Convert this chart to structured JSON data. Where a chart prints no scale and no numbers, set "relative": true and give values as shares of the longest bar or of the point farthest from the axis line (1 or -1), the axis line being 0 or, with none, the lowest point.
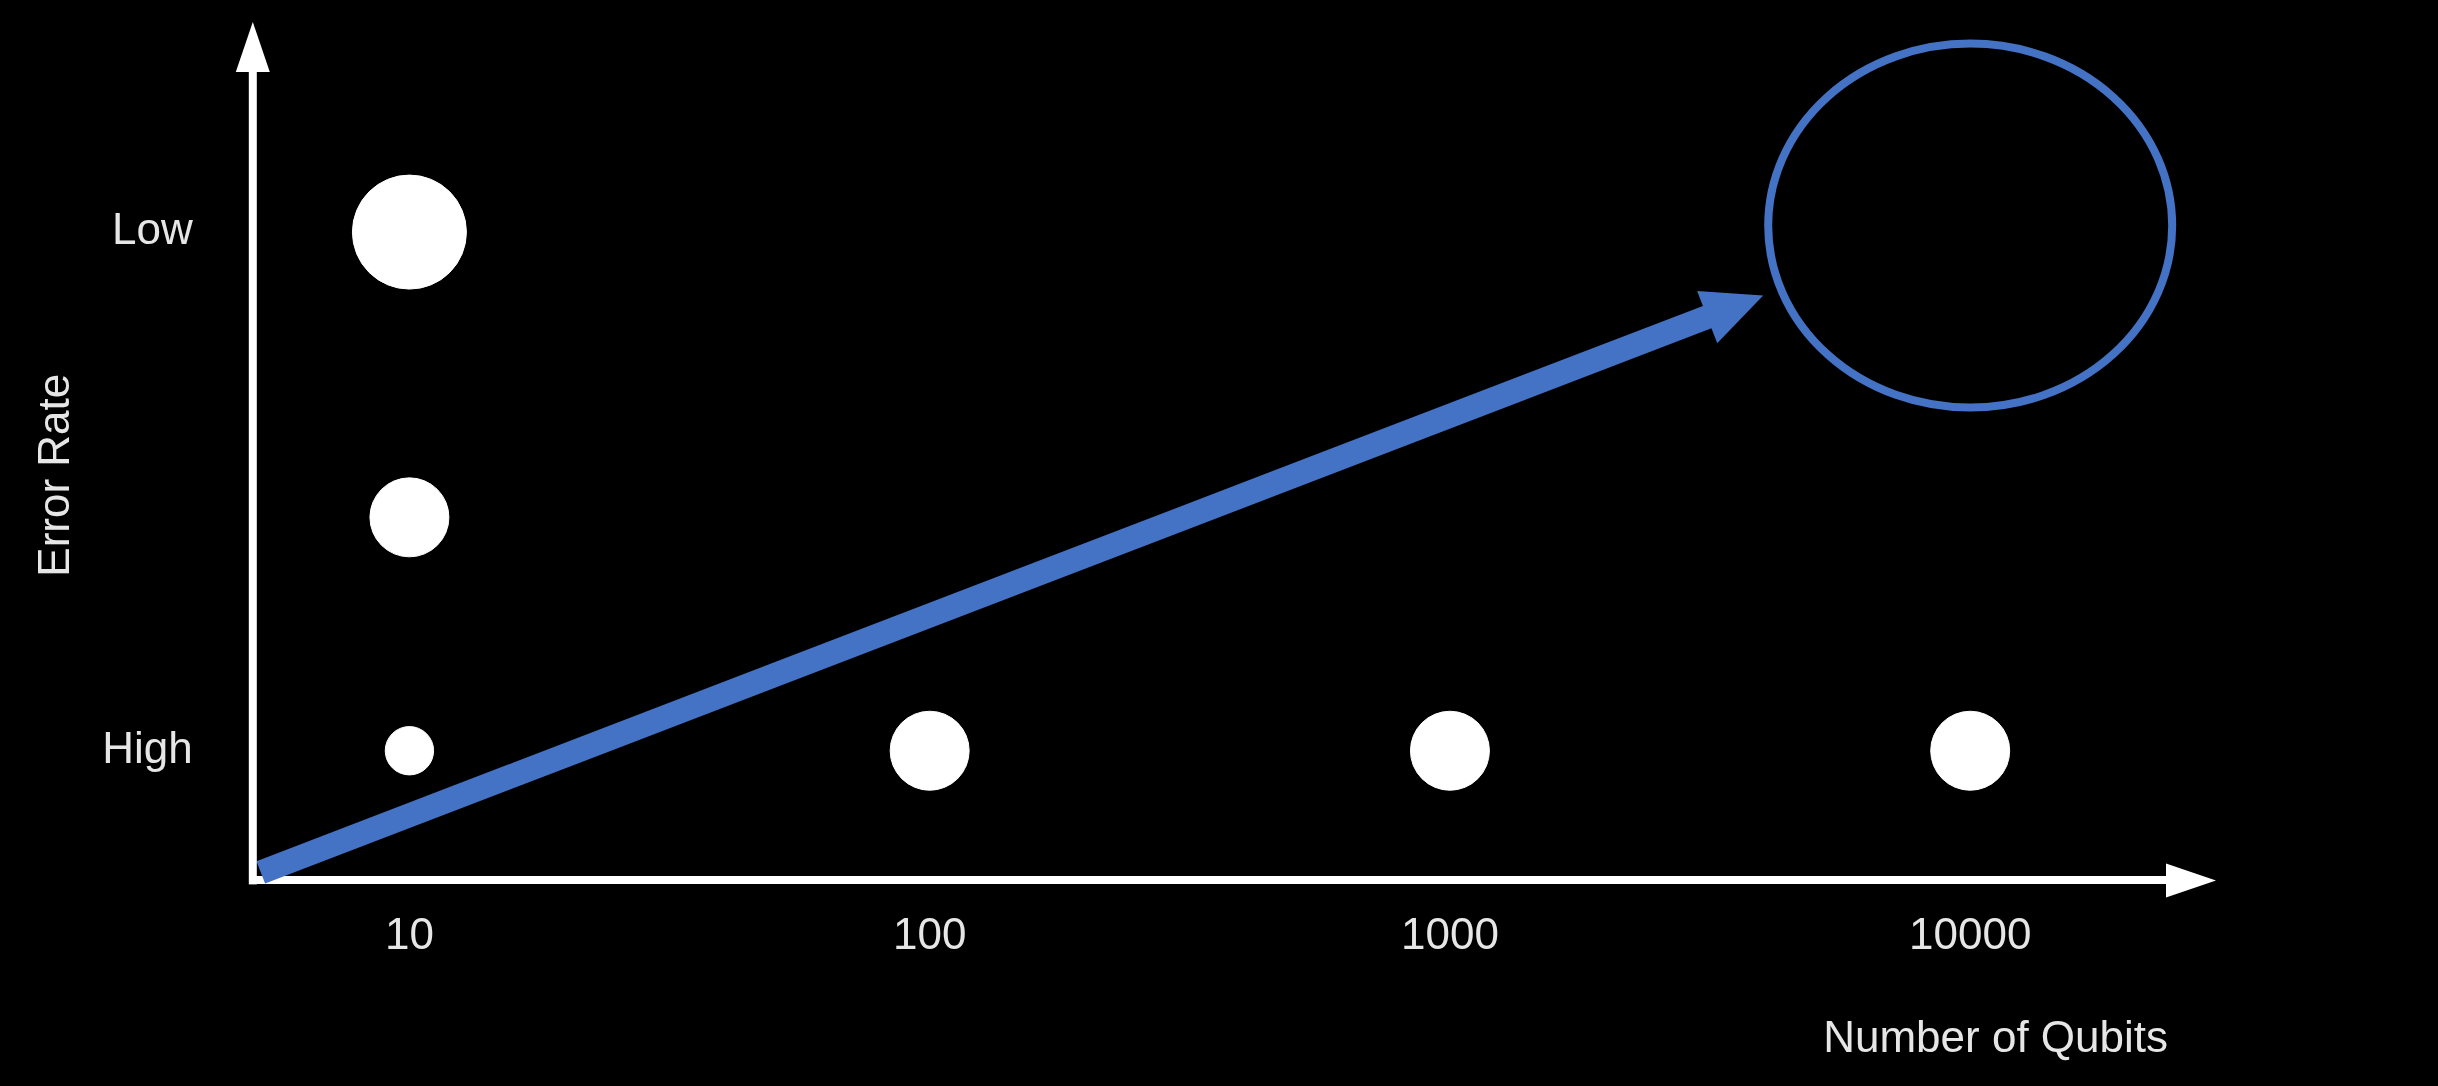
{
  "chart_data": {
    "type": "bubble",
    "xlabel": "Number of Qubits",
    "ylabel": "Error Rate",
    "log": "x",
    "xlim": [
      5,
      24000
    ],
    "xticks": [
      10,
      100,
      1000,
      10000
    ],
    "relative": true,
    "annotations": [
      "Low",
      "High"
    ],
    "grid": false,
    "legend": false,
    "series": [
      {
        "color": "#ffffff",
        "x": [
          10,
          10,
          10,
          100,
          1000,
          10000
        ],
        "values": [
          1,
          0.56,
          0.2,
          0.2,
          0.2,
          0.2
        ],
        "sizes": [
          1,
          0.48,
          0.18,
          0.48,
          0.48,
          0.48
        ]
      }
    ]
  }
}
